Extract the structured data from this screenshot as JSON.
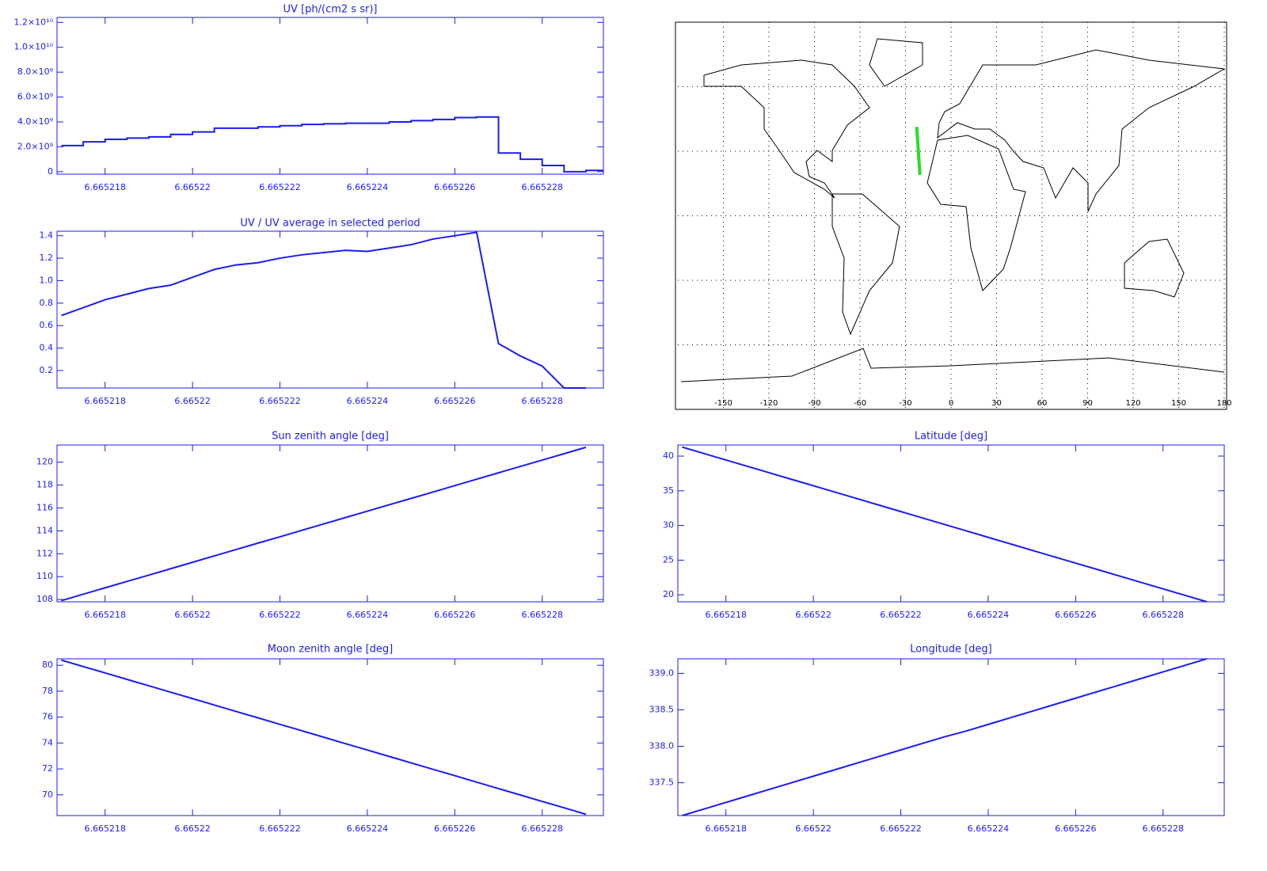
{
  "chart_data": [
    {
      "type": "step",
      "title": "UV [ph/(cm2 s sr)]",
      "color": "#1c1cf0",
      "x": [
        6.665217,
        6.6652175,
        6.665218,
        6.6652185,
        6.665219,
        6.6652195,
        6.66522,
        6.6652205,
        6.665221,
        6.6652215,
        6.665222,
        6.6652225,
        6.665223,
        6.6652235,
        6.665224,
        6.6652245,
        6.665225,
        6.6652255,
        6.665226,
        6.6652265,
        6.665227,
        6.6652275,
        6.665228,
        6.6652285,
        6.665229
      ],
      "values": [
        2100000000,
        2400000000,
        2600000000,
        2700000000,
        2800000000,
        3000000000,
        3200000000,
        3500000000,
        3500000000,
        3600000000,
        3700000000,
        3800000000,
        3850000000,
        3900000000,
        3900000000,
        4000000000,
        4100000000,
        4200000000,
        4350000000,
        4400000000,
        1500000000,
        1000000000,
        500000000,
        0,
        100000000
      ],
      "xlim": [
        6.6652169,
        6.6652294
      ],
      "xticks": [
        6.665218,
        6.66522,
        6.665222,
        6.665224,
        6.665226,
        6.665228
      ],
      "ylim": [
        -200000000,
        12400000000
      ],
      "yticks": [
        0,
        {
          "value": 2000000000,
          "label": "2.0×10⁹"
        },
        {
          "value": 4000000000,
          "label": "4.0×10⁹"
        },
        {
          "value": 6000000000,
          "label": "6.0×10⁹"
        },
        {
          "value": 8000000000,
          "label": "8.0×10⁹"
        },
        {
          "value": 10000000000,
          "label": "1.0×10¹⁰"
        },
        {
          "value": 12000000000,
          "label": "1.2×10¹⁰"
        }
      ]
    },
    {
      "type": "line",
      "title": "UV / UV average in selected period",
      "color": "#1c1cf0",
      "x": [
        6.665217,
        6.6652175,
        6.665218,
        6.6652185,
        6.665219,
        6.6652195,
        6.66522,
        6.6652205,
        6.665221,
        6.6652215,
        6.665222,
        6.6652225,
        6.665223,
        6.6652235,
        6.665224,
        6.6652245,
        6.665225,
        6.6652255,
        6.665226,
        6.6652265,
        6.665227,
        6.6652275,
        6.665228,
        6.6652285,
        6.665229
      ],
      "values": [
        0.69,
        0.76,
        0.83,
        0.88,
        0.93,
        0.96,
        1.03,
        1.1,
        1.14,
        1.16,
        1.2,
        1.23,
        1.25,
        1.27,
        1.26,
        1.29,
        1.32,
        1.37,
        1.4,
        1.43,
        0.44,
        0.33,
        0.24,
        0.045,
        0.045
      ],
      "xlim": [
        6.6652169,
        6.6652294
      ],
      "xticks": [
        6.665218,
        6.66522,
        6.665222,
        6.665224,
        6.665226,
        6.665228
      ],
      "ylim": [
        0.045,
        1.44
      ],
      "yticks": [
        0.2,
        0.4,
        0.6,
        0.8,
        {
          "value": 1.0,
          "label": "1.0"
        },
        1.2,
        1.4
      ]
    },
    {
      "type": "map",
      "xlim": [
        -180,
        180
      ],
      "ylim": [
        -90,
        90
      ],
      "xticks": [
        -150,
        -120,
        -90,
        -60,
        -30,
        0,
        30,
        60,
        90,
        120,
        150,
        180
      ],
      "yticks": [
        -60,
        -30,
        0,
        30,
        60
      ],
      "grid": true,
      "track": {
        "color": "#22e022",
        "lon": [
          -22.6,
          -20.5
        ],
        "lat": [
          41.3,
          19.0
        ]
      }
    },
    {
      "type": "line",
      "title": "Sun zenith angle [deg]",
      "color": "#1c1cf0",
      "x": [
        6.665217,
        6.6652175,
        6.665218,
        6.6652185,
        6.665219,
        6.6652195,
        6.66522,
        6.6652205,
        6.665221,
        6.6652215,
        6.665222,
        6.6652225,
        6.665223,
        6.6652235,
        6.665224,
        6.6652245,
        6.665225,
        6.6652255,
        6.665226,
        6.6652265,
        6.665227,
        6.6652275,
        6.665228,
        6.6652285,
        6.665229
      ],
      "values": [
        107.9,
        108.46,
        109.02,
        109.58,
        110.13,
        110.69,
        111.25,
        111.81,
        112.37,
        112.93,
        113.48,
        114.04,
        114.6,
        115.16,
        115.72,
        116.28,
        116.83,
        117.39,
        117.95,
        118.51,
        119.07,
        119.63,
        120.18,
        120.74,
        121.3
      ],
      "xlim": [
        6.6652169,
        6.6652294
      ],
      "xticks": [
        6.665218,
        6.66522,
        6.665222,
        6.665224,
        6.665226,
        6.665228
      ],
      "ylim": [
        107.8,
        121.5
      ],
      "yticks": [
        108,
        110,
        112,
        114,
        116,
        118,
        120
      ]
    },
    {
      "type": "line",
      "title": "Latitude [deg]",
      "color": "#1c1cf0",
      "x": [
        6.665217,
        6.6652175,
        6.665218,
        6.6652185,
        6.665219,
        6.6652195,
        6.66522,
        6.6652205,
        6.665221,
        6.6652215,
        6.665222,
        6.6652225,
        6.665223,
        6.6652235,
        6.665224,
        6.6652245,
        6.665225,
        6.6652255,
        6.665226,
        6.6652265,
        6.665227,
        6.6652275,
        6.665228,
        6.6652285,
        6.665229
      ],
      "values": [
        41.3,
        40.37,
        39.44,
        38.51,
        37.58,
        36.65,
        35.73,
        34.8,
        33.87,
        32.94,
        32.01,
        31.08,
        30.15,
        29.22,
        28.29,
        27.36,
        26.43,
        25.5,
        24.57,
        23.65,
        22.72,
        21.79,
        20.86,
        19.93,
        19.0
      ],
      "xlim": [
        6.6652169,
        6.6652294
      ],
      "xticks": [
        6.665218,
        6.66522,
        6.665222,
        6.665224,
        6.665226,
        6.665228
      ],
      "ylim": [
        19.0,
        41.6
      ],
      "yticks": [
        20,
        25,
        30,
        35,
        40
      ]
    },
    {
      "type": "line",
      "title": "Moon zenith angle [deg]",
      "color": "#1c1cf0",
      "x": [
        6.665217,
        6.6652175,
        6.665218,
        6.6652185,
        6.665219,
        6.6652195,
        6.66522,
        6.6652205,
        6.665221,
        6.6652215,
        6.665222,
        6.6652225,
        6.665223,
        6.6652235,
        6.665224,
        6.6652245,
        6.665225,
        6.6652255,
        6.665226,
        6.6652265,
        6.665227,
        6.6652275,
        6.665228,
        6.6652285,
        6.665229
      ],
      "values": [
        80.4,
        79.9,
        79.41,
        78.91,
        78.42,
        77.92,
        77.43,
        76.93,
        76.43,
        75.94,
        75.44,
        74.95,
        74.45,
        73.95,
        73.46,
        72.96,
        72.47,
        71.97,
        71.48,
        70.98,
        70.48,
        69.99,
        69.49,
        69.0,
        68.5
      ],
      "xlim": [
        6.6652169,
        6.6652294
      ],
      "xticks": [
        6.665218,
        6.66522,
        6.665222,
        6.665224,
        6.665226,
        6.665228
      ],
      "ylim": [
        68.4,
        80.5
      ],
      "yticks": [
        70,
        72,
        74,
        76,
        78,
        80
      ]
    },
    {
      "type": "line",
      "title": "Longitude [deg]",
      "color": "#1c1cf0",
      "x": [
        6.665217,
        6.6652175,
        6.665218,
        6.6652185,
        6.665219,
        6.6652195,
        6.66522,
        6.6652205,
        6.665221,
        6.6652215,
        6.665222,
        6.6652225,
        6.665223,
        6.6652235,
        6.665224,
        6.6652245,
        6.665225,
        6.6652255,
        6.665226,
        6.6652265,
        6.665227,
        6.6652275,
        6.665228,
        6.6652285,
        6.665229
      ],
      "values": [
        337.05,
        337.14,
        337.23,
        337.32,
        337.41,
        337.5,
        337.59,
        337.68,
        337.77,
        337.86,
        337.95,
        338.04,
        338.13,
        338.21,
        338.3,
        338.39,
        338.48,
        338.57,
        338.66,
        338.75,
        338.84,
        338.93,
        339.02,
        339.11,
        339.2
      ],
      "xlim": [
        6.6652169,
        6.6652294
      ],
      "xticks": [
        6.665218,
        6.66522,
        6.665222,
        6.665224,
        6.665226,
        6.665228
      ],
      "ylim": [
        337.05,
        339.2
      ],
      "yticks": [
        337.5,
        {
          "value": 338.0,
          "label": "338.0"
        },
        338.5,
        {
          "value": 339.0,
          "label": "339.0"
        }
      ]
    }
  ]
}
